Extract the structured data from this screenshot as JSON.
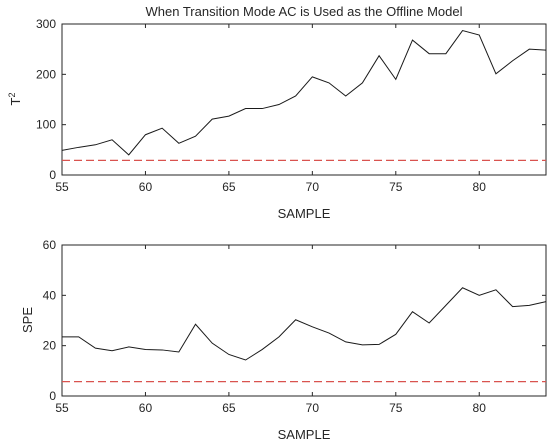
{
  "chart_data": [
    {
      "type": "line",
      "title": "When Transition Mode AC is Used as the Offline Model",
      "xlabel": "SAMPLE",
      "ylabel": "T",
      "ylabel_superscript": "2",
      "xlim": [
        55,
        84
      ],
      "ylim": [
        0,
        300
      ],
      "xticks": [
        "55",
        "60",
        "65",
        "70",
        "75",
        "80"
      ],
      "yticks": [
        "0",
        "100",
        "200",
        "300"
      ],
      "grid": false,
      "x": [
        55,
        56,
        57,
        58,
        59,
        60,
        61,
        62,
        63,
        64,
        65,
        66,
        67,
        68,
        69,
        70,
        71,
        72,
        73,
        74,
        75,
        76,
        77,
        78,
        79,
        80,
        81,
        82,
        83,
        84
      ],
      "series": [
        {
          "values": [
            49,
            55,
            60,
            70,
            40,
            80,
            93,
            63,
            77,
            111,
            117,
            132,
            132,
            140,
            157,
            195,
            183,
            157,
            183,
            237,
            190,
            268,
            241,
            241,
            287,
            278,
            201,
            227,
            250,
            248
          ],
          "color": "#1a1a1a"
        },
        {
          "values": [
            29,
            29,
            29,
            29,
            29,
            29,
            29,
            29,
            29,
            29,
            29,
            29,
            29,
            29,
            29,
            29,
            29,
            29,
            29,
            29,
            29,
            29,
            29,
            29,
            29,
            29,
            29,
            29,
            29,
            29
          ],
          "color": "#d9534f",
          "style": "dashed"
        }
      ]
    },
    {
      "type": "line",
      "title": "",
      "xlabel": "SAMPLE",
      "ylabel": "SPE",
      "xlim": [
        55,
        84
      ],
      "ylim": [
        0,
        60
      ],
      "xticks": [
        "55",
        "60",
        "65",
        "70",
        "75",
        "80"
      ],
      "yticks": [
        "0",
        "20",
        "40",
        "60"
      ],
      "grid": false,
      "x": [
        55,
        56,
        57,
        58,
        59,
        60,
        61,
        62,
        63,
        64,
        65,
        66,
        67,
        68,
        69,
        70,
        71,
        72,
        73,
        74,
        75,
        76,
        77,
        78,
        79,
        80,
        81,
        82,
        83,
        84
      ],
      "series": [
        {
          "values": [
            23.5,
            23.5,
            19,
            18,
            19.5,
            18.5,
            18.3,
            17.5,
            28.5,
            21,
            16.5,
            14.3,
            18.5,
            23.5,
            30.3,
            27.5,
            25,
            21.5,
            20.3,
            20.5,
            24.5,
            33.5,
            29,
            36,
            43,
            40,
            42.2,
            35.5,
            36,
            37.5
          ],
          "color": "#1a1a1a"
        },
        {
          "values": [
            5.7,
            5.7,
            5.7,
            5.7,
            5.7,
            5.7,
            5.7,
            5.7,
            5.7,
            5.7,
            5.7,
            5.7,
            5.7,
            5.7,
            5.7,
            5.7,
            5.7,
            5.7,
            5.7,
            5.7,
            5.7,
            5.7,
            5.7,
            5.7,
            5.7,
            5.7,
            5.7,
            5.7,
            5.7,
            5.7
          ],
          "color": "#d9534f",
          "style": "dashed"
        }
      ]
    }
  ]
}
